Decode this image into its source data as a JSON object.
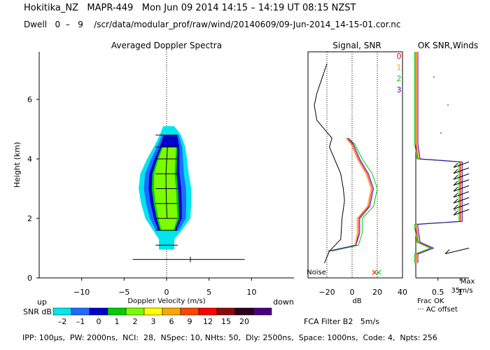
{
  "header": {
    "line1": "Hokitika_NZ   MAPR-449   Mon Jun 09 2014 14:15 – 14:19 UT 08:15 NZST",
    "line2": "Dwell   0  –   9    /scr/data/modular_prof/raw/wind/20140609/09-Jun-2014_14-15-01.cor.nc"
  },
  "footer": {
    "params": "IPP: 100µs,  PW: 2000ns,  NCI:  28,  NSpec: 10, NHts: 50,  Dly: 2500ns,  Space: 1000ns,  Code: 4,  Npts: 256",
    "fca": "FCA Filter B2   5m/s"
  },
  "chart_data": [
    {
      "type": "heatmap",
      "title": "Averaged Doppler Spectra",
      "xlabel": "Doppler Velocity (m/s)",
      "ylabel": "Height (km)",
      "xlim": [
        -15,
        15
      ],
      "ylim": [
        0,
        7.6
      ],
      "xticks": [
        -10,
        -5,
        0,
        5,
        10
      ],
      "yticks": [
        0,
        2,
        4,
        6
      ],
      "x_left_label": "up",
      "x_right_label": "down",
      "colorbar": {
        "label": "SNR dB",
        "ticks": [
          "–2",
          "–1",
          "0",
          "1",
          "2",
          "3",
          "6",
          "9",
          "12",
          "15",
          "20"
        ],
        "colors": [
          "#00e5ee",
          "#1e6bff",
          "#0000cd",
          "#00cd00",
          "#7cfc00",
          "#ffff00",
          "#ffa500",
          "#ff4500",
          "#ff0000",
          "#8b0a0a",
          "#2b0020",
          "#4b0082"
        ]
      },
      "echo_profile": [
        {
          "h": 0.95,
          "lo": -0.9,
          "hi": 0.9
        },
        {
          "h": 1.3,
          "lo": -0.9,
          "hi": 0.9
        },
        {
          "h": 1.6,
          "lo": -1.6,
          "hi": 1.8
        },
        {
          "h": 2.0,
          "lo": -2.5,
          "hi": 2.8
        },
        {
          "h": 2.5,
          "lo": -3.0,
          "hi": 2.9
        },
        {
          "h": 3.0,
          "lo": -3.3,
          "hi": 2.9
        },
        {
          "h": 3.5,
          "lo": -3.1,
          "hi": 2.6
        },
        {
          "h": 4.0,
          "lo": -2.3,
          "hi": 2.4
        },
        {
          "h": 4.4,
          "lo": -1.5,
          "hi": 2.2
        },
        {
          "h": 4.8,
          "lo": -0.8,
          "hi": 1.7
        },
        {
          "h": 5.1,
          "lo": -0.4,
          "hi": 0.9
        }
      ],
      "error_bar": {
        "h": 0.62,
        "v": 2.8,
        "lo": -4.0,
        "hi": 9.2
      }
    },
    {
      "type": "line",
      "title": "Signal, SNR",
      "xlabel": "dB",
      "xlim": [
        -35,
        40
      ],
      "xticks": [
        -20,
        0,
        20,
        40
      ],
      "annotation": "Noise",
      "series": [
        {
          "name": "Signal",
          "color": "#000000",
          "points": [
            [
              -22,
              0.5
            ],
            [
              -18,
              0.9
            ],
            [
              -9,
              1.3
            ],
            [
              -8,
              2.0
            ],
            [
              -6,
              2.6
            ],
            [
              -7,
              3.0
            ],
            [
              -9,
              3.5
            ],
            [
              -14,
              4.0
            ],
            [
              -18,
              4.4
            ],
            [
              -16,
              4.7
            ],
            [
              -28,
              5.3
            ],
            [
              -30,
              5.8
            ],
            [
              -28,
              6.2
            ],
            [
              -24,
              6.7
            ],
            [
              -20,
              7.2
            ]
          ]
        },
        {
          "name": "0",
          "color": "#ff0000",
          "points": [
            [
              -18,
              0.9
            ],
            [
              3,
              1.1
            ],
            [
              5,
              1.5
            ],
            [
              5,
              2.0
            ],
            [
              13,
              2.4
            ],
            [
              16,
              3.0
            ],
            [
              12,
              3.5
            ],
            [
              5,
              4.0
            ],
            [
              0,
              4.5
            ],
            [
              -4,
              4.7
            ]
          ]
        },
        {
          "name": "1",
          "color": "#ffa500",
          "points": [
            [
              -17,
              0.9
            ],
            [
              2,
              1.1
            ],
            [
              4,
              1.5
            ],
            [
              4,
              2.0
            ],
            [
              12,
              2.4
            ],
            [
              15,
              3.0
            ],
            [
              11,
              3.5
            ],
            [
              4,
              4.0
            ],
            [
              -1,
              4.5
            ],
            [
              -5,
              4.7
            ]
          ]
        },
        {
          "name": "2",
          "color": "#00cd00",
          "points": [
            [
              -16,
              0.9
            ],
            [
              5,
              1.1
            ],
            [
              8,
              1.5
            ],
            [
              8,
              2.0
            ],
            [
              17,
              2.4
            ],
            [
              20,
              3.0
            ],
            [
              16,
              3.5
            ],
            [
              8,
              4.0
            ],
            [
              2,
              4.5
            ],
            [
              -3,
              4.7
            ]
          ]
        },
        {
          "name": "3",
          "color": "#3a00c0",
          "points": [
            [
              -19,
              0.9
            ],
            [
              3,
              1.1
            ],
            [
              6,
              1.5
            ],
            [
              6,
              2.0
            ],
            [
              14,
              2.4
            ],
            [
              17,
              3.0
            ],
            [
              13,
              3.5
            ],
            [
              6,
              4.0
            ],
            [
              1,
              4.5
            ],
            [
              -3,
              4.7
            ]
          ]
        }
      ]
    },
    {
      "type": "line",
      "title": "OK SNR,Winds",
      "xlabel": "Frac OK",
      "xlim": [
        0,
        1.2
      ],
      "xticks": [
        0.5,
        1
      ],
      "legend": [
        "0",
        "1",
        "2",
        "3"
      ],
      "legend_colors": [
        "#ff0000",
        "#ffa500",
        "#00cd00",
        "#3a00c0"
      ],
      "notes": [
        "Max",
        "35m/s",
        "··· AC offset"
      ],
      "frac_ok": [
        [
          0.0,
          0.5
        ],
        [
          0.0,
          0.8
        ],
        [
          0.35,
          1.0
        ],
        [
          0.05,
          1.2
        ],
        [
          0.0,
          1.7
        ],
        [
          0.0,
          1.8
        ],
        [
          1.0,
          1.9
        ],
        [
          1.0,
          2.5
        ],
        [
          1.0,
          3.5
        ],
        [
          1.0,
          3.9
        ],
        [
          0.05,
          4.0
        ],
        [
          0.0,
          4.5
        ],
        [
          0.0,
          7.6
        ]
      ]
    }
  ]
}
